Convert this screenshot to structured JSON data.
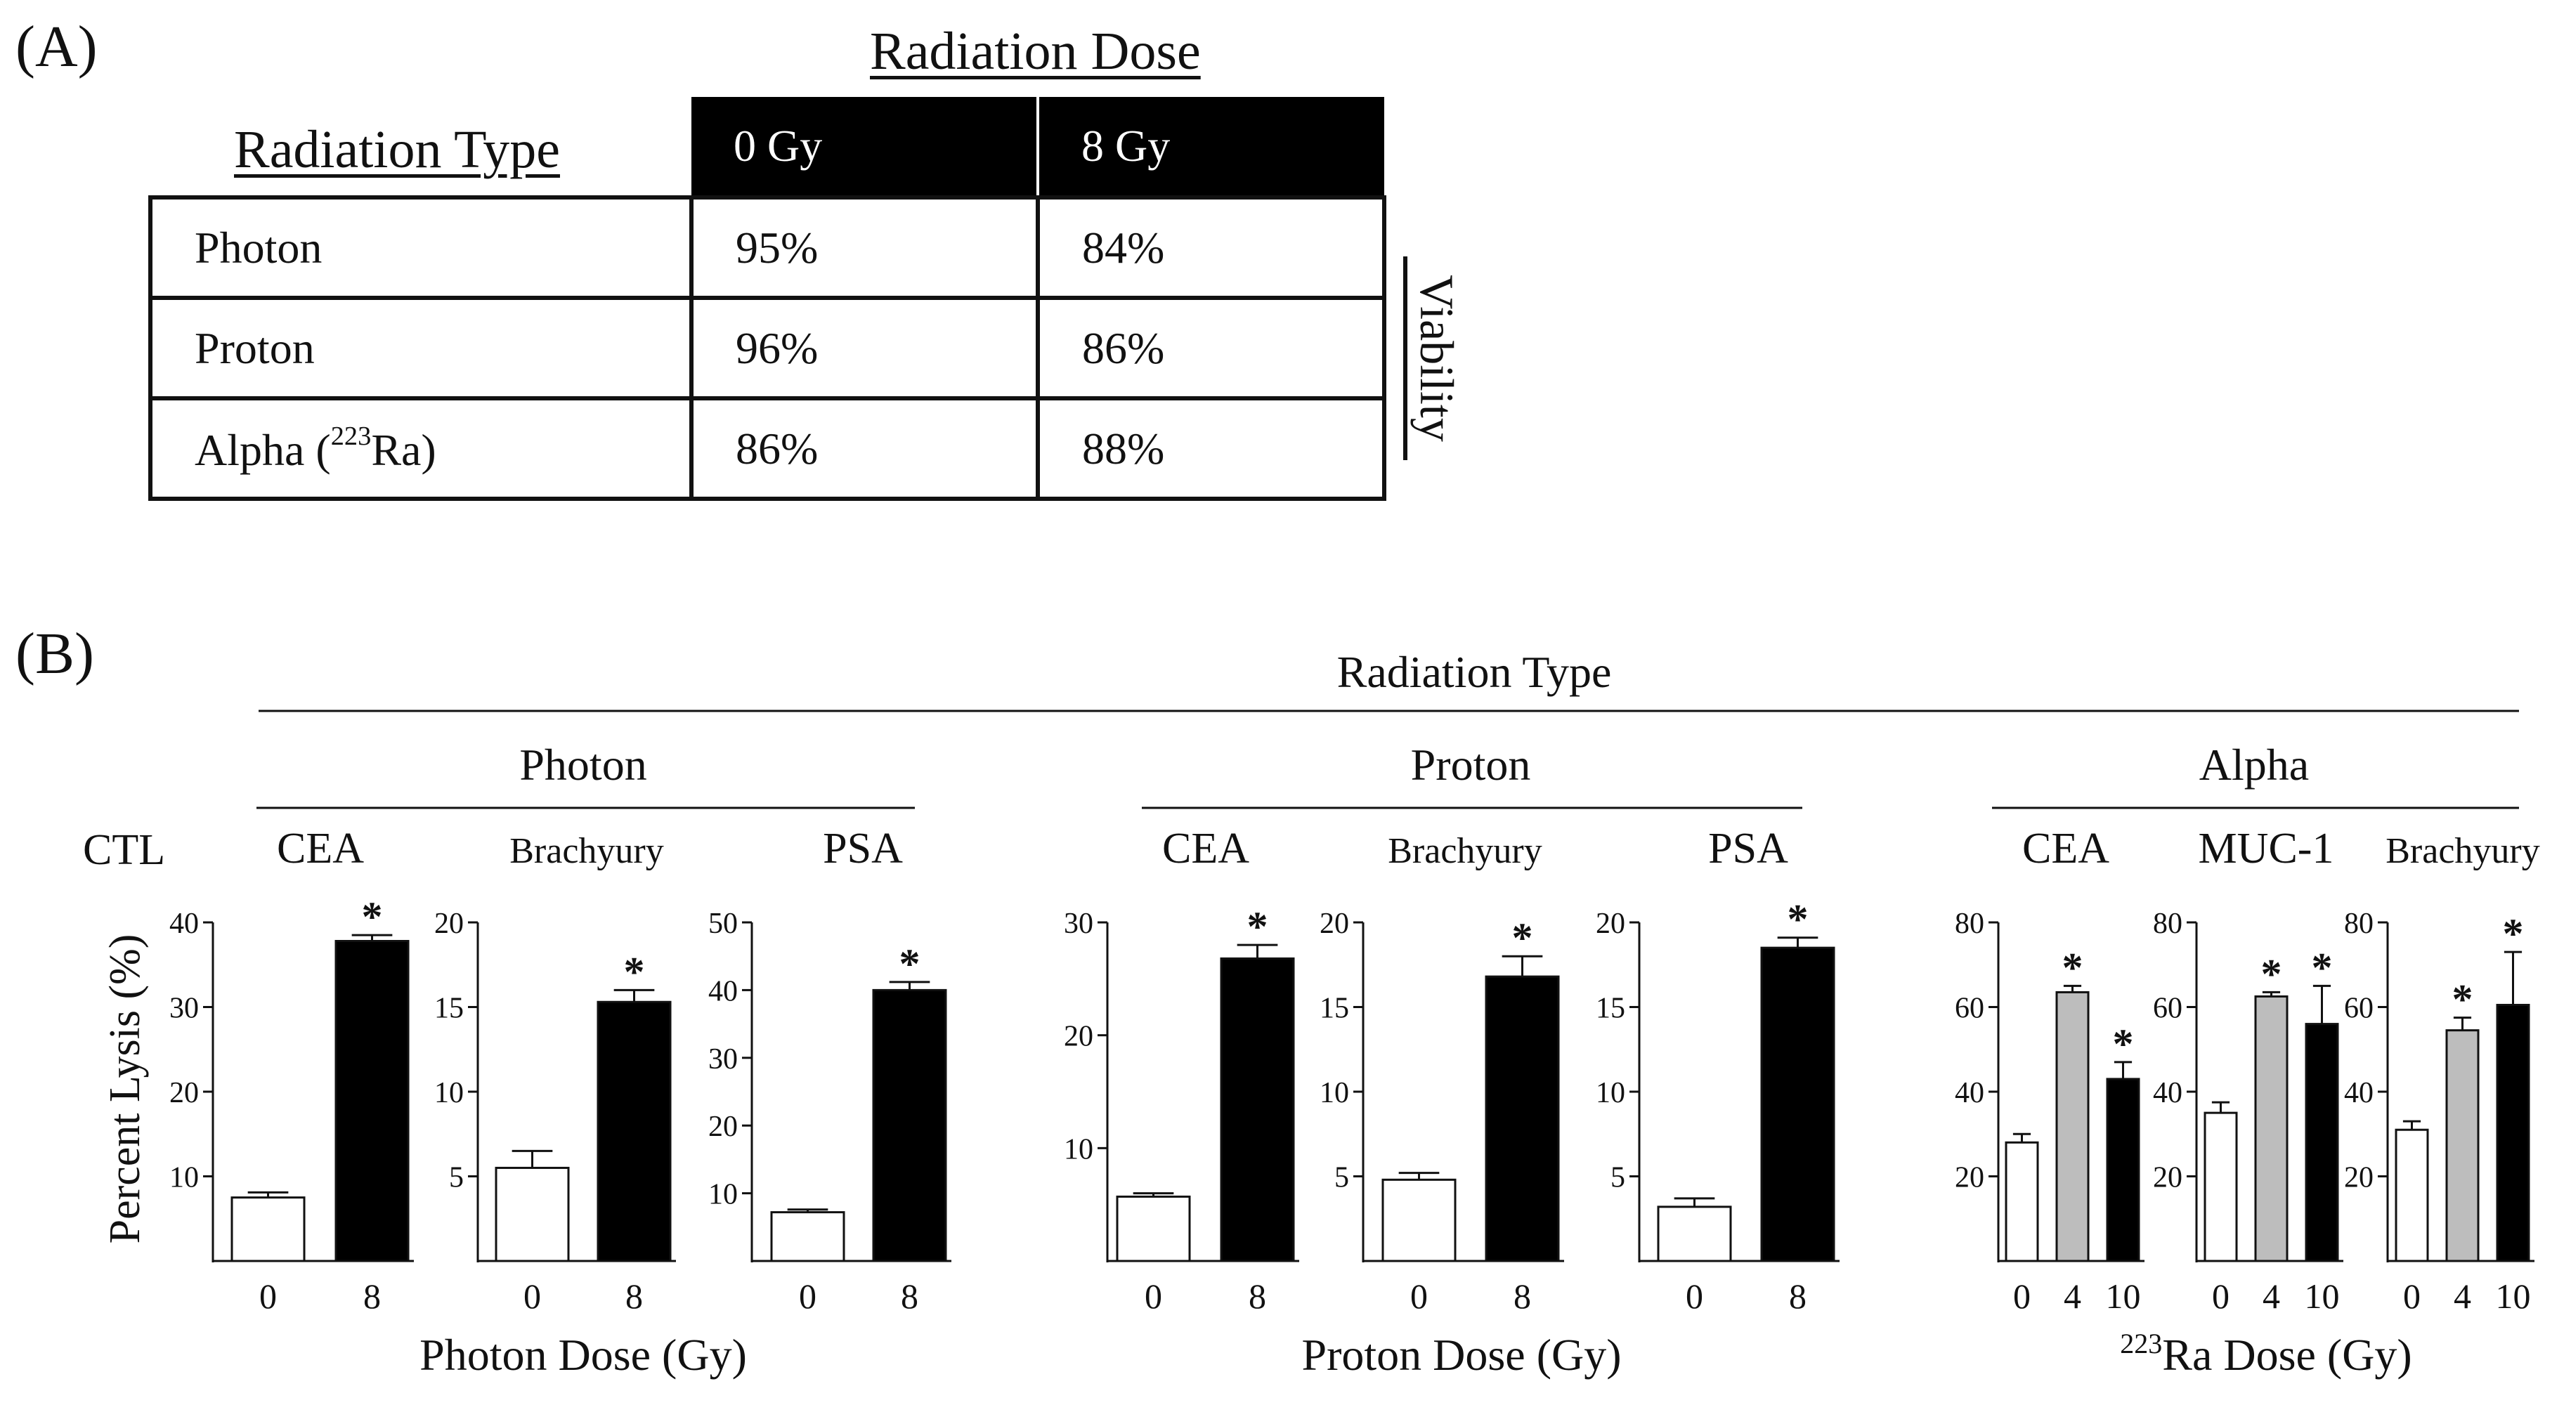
{
  "panel_a": {
    "label": "(A)",
    "header_dose": "Radiation Dose",
    "header_type": "Radiation Type",
    "dose_cols": [
      "0 Gy",
      "8 Gy"
    ],
    "rows": [
      {
        "type": "Photon",
        "iso": "",
        "type_suffix": "",
        "v0": "95%",
        "v8": "84%"
      },
      {
        "type": "Proton",
        "iso": "",
        "type_suffix": "",
        "v0": "96%",
        "v8": "86%"
      },
      {
        "type": "Alpha (",
        "iso": "223",
        "type_suffix": "Ra)",
        "v0": "86%",
        "v8": "88%"
      }
    ],
    "side_label": "Viability"
  },
  "panel_b": {
    "label": "(B)",
    "top_title": "Radiation Type",
    "row_label": "CTL",
    "ylabel": "Percent Lysis (%)",
    "groups": [
      {
        "name": "Photon",
        "xlabel": "Photon Dose (Gy)",
        "iso": "",
        "xlabel_suffix": ""
      },
      {
        "name": "Proton",
        "xlabel": "Proton Dose (Gy)",
        "iso": "",
        "xlabel_suffix": ""
      },
      {
        "name": "Alpha",
        "xlabel": "",
        "iso": "223",
        "xlabel_suffix": "Ra Dose (Gy)"
      }
    ]
  },
  "colors": {
    "white_bar": "#ffffff",
    "gray_bar": "#bdbdbd",
    "black_bar": "#000000",
    "axis": "#111111"
  },
  "chart_data": [
    {
      "type": "bar",
      "group": "Photon",
      "title": "CEA",
      "categories": [
        "0",
        "8"
      ],
      "values": [
        7.5,
        37.8
      ],
      "errors": [
        0.6,
        0.7
      ],
      "significant": [
        false,
        true
      ],
      "fills": [
        "white",
        "black"
      ],
      "ylim": [
        0,
        40
      ],
      "yticks": [
        10,
        20,
        30,
        40
      ]
    },
    {
      "type": "bar",
      "group": "Photon",
      "title": "Brachyury",
      "categories": [
        "0",
        "8"
      ],
      "values": [
        5.5,
        15.3
      ],
      "errors": [
        1.0,
        0.7
      ],
      "significant": [
        false,
        true
      ],
      "fills": [
        "white",
        "black"
      ],
      "ylim": [
        0,
        20
      ],
      "yticks": [
        5,
        10,
        15,
        20
      ]
    },
    {
      "type": "bar",
      "group": "Photon",
      "title": "PSA",
      "categories": [
        "0",
        "8"
      ],
      "values": [
        7.2,
        40.0
      ],
      "errors": [
        0.4,
        1.2
      ],
      "significant": [
        false,
        true
      ],
      "fills": [
        "white",
        "black"
      ],
      "ylim": [
        0,
        50
      ],
      "yticks": [
        10,
        20,
        30,
        40,
        50
      ]
    },
    {
      "type": "bar",
      "group": "Proton",
      "title": "CEA",
      "categories": [
        "0",
        "8"
      ],
      "values": [
        5.7,
        26.8
      ],
      "errors": [
        0.3,
        1.2
      ],
      "significant": [
        false,
        true
      ],
      "fills": [
        "white",
        "black"
      ],
      "ylim": [
        0,
        30
      ],
      "yticks": [
        10,
        20,
        30
      ]
    },
    {
      "type": "bar",
      "group": "Proton",
      "title": "Brachyury",
      "categories": [
        "0",
        "8"
      ],
      "values": [
        4.8,
        16.8
      ],
      "errors": [
        0.4,
        1.2
      ],
      "significant": [
        false,
        true
      ],
      "fills": [
        "white",
        "black"
      ],
      "ylim": [
        0,
        20
      ],
      "yticks": [
        5,
        10,
        15,
        20
      ]
    },
    {
      "type": "bar",
      "group": "Proton",
      "title": "PSA",
      "categories": [
        "0",
        "8"
      ],
      "values": [
        3.2,
        18.5
      ],
      "errors": [
        0.5,
        0.6
      ],
      "significant": [
        false,
        true
      ],
      "fills": [
        "white",
        "black"
      ],
      "ylim": [
        0,
        20
      ],
      "yticks": [
        5,
        10,
        15,
        20
      ]
    },
    {
      "type": "bar",
      "group": "Alpha",
      "title": "CEA",
      "categories": [
        "0",
        "4",
        "10"
      ],
      "values": [
        28,
        63.5,
        43
      ],
      "errors": [
        2,
        1.5,
        4
      ],
      "significant": [
        false,
        true,
        true
      ],
      "fills": [
        "white",
        "gray",
        "black"
      ],
      "ylim": [
        0,
        80
      ],
      "yticks": [
        20,
        40,
        60,
        80
      ]
    },
    {
      "type": "bar",
      "group": "Alpha",
      "title": "MUC-1",
      "categories": [
        "0",
        "4",
        "10"
      ],
      "values": [
        35,
        62.5,
        56
      ],
      "errors": [
        2.5,
        1,
        9
      ],
      "significant": [
        false,
        true,
        true
      ],
      "fills": [
        "white",
        "gray",
        "black"
      ],
      "ylim": [
        0,
        80
      ],
      "yticks": [
        20,
        40,
        60,
        80
      ]
    },
    {
      "type": "bar",
      "group": "Alpha",
      "title": "Brachyury",
      "categories": [
        "0",
        "4",
        "10"
      ],
      "values": [
        31,
        54.5,
        60.5
      ],
      "errors": [
        2,
        3,
        12.5
      ],
      "significant": [
        false,
        true,
        true
      ],
      "fills": [
        "white",
        "gray",
        "black"
      ],
      "ylim": [
        0,
        80
      ],
      "yticks": [
        20,
        40,
        60,
        80
      ]
    }
  ]
}
